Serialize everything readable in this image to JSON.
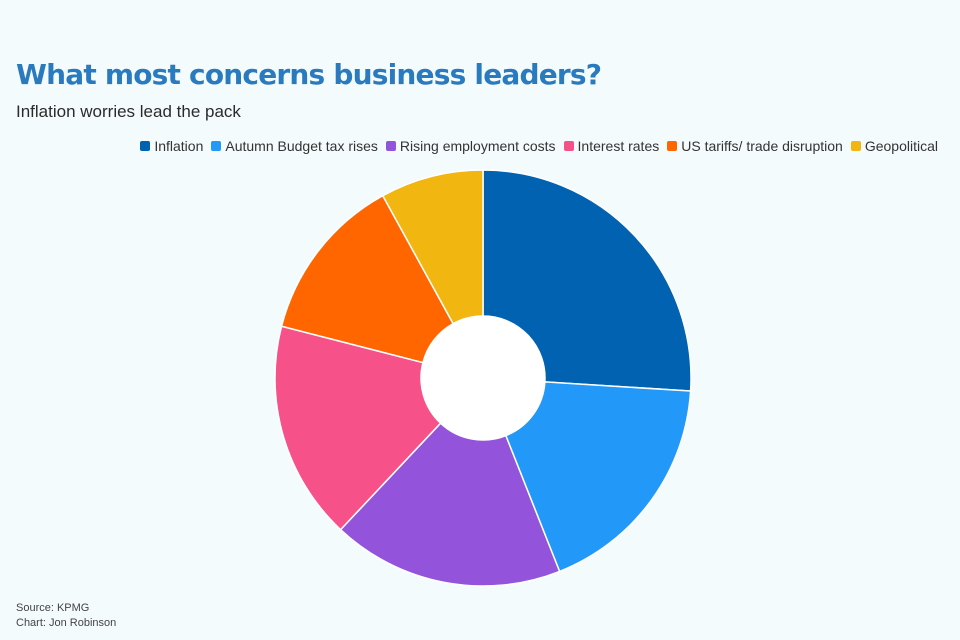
{
  "header": {
    "title": "What most concerns business leaders?",
    "subtitle": "Inflation worries lead the pack"
  },
  "chart_data": {
    "type": "pie",
    "title": "What most concerns business leaders?",
    "subtitle": "Inflation worries lead the pack",
    "donut": true,
    "legend_position": "top-right",
    "categories": [
      "Inflation",
      "Autumn Budget tax rises",
      "Rising employment costs",
      "Interest rates",
      "US tariffs/ trade disruption",
      "Geopolitical"
    ],
    "values": [
      26,
      18,
      18,
      17,
      13,
      8
    ],
    "colors": [
      "#0062b1",
      "#2299f8",
      "#9354db",
      "#f65189",
      "#ff6600",
      "#f2b611"
    ]
  },
  "footer": {
    "source": "Source: KPMG",
    "credit": "Chart: Jon Robinson"
  }
}
